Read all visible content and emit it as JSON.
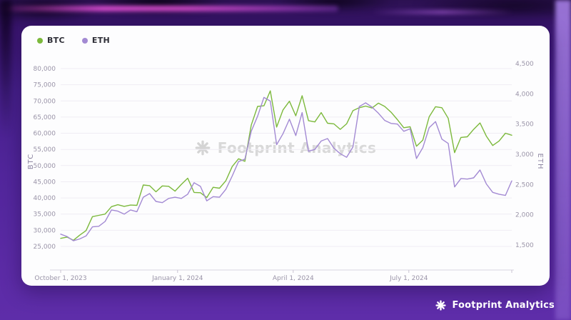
{
  "legend": [
    {
      "label": "BTC",
      "color": "#7cb93c"
    },
    {
      "label": "ETH",
      "color": "#a38ad3"
    }
  ],
  "watermark": {
    "text": "Footprint Analytics"
  },
  "footer": {
    "brand": "Footprint Analytics"
  },
  "chart_data": {
    "type": "line",
    "title": "",
    "x_axis": {
      "day_step": 5,
      "end_day": 355,
      "ticks": [
        {
          "label": "October 1, 2023",
          "day": 0
        },
        {
          "label": "January 1, 2024",
          "day": 92
        },
        {
          "label": "April 1, 2024",
          "day": 183
        },
        {
          "label": "July 1, 2024",
          "day": 274
        }
      ]
    },
    "left_axis": {
      "title": "BTC",
      "min": 25000,
      "max": 80000,
      "step": 5000
    },
    "right_axis": {
      "title": "ETH",
      "min": 1500,
      "max": 4500,
      "step": 500
    },
    "grid": true,
    "legend_position": "top-left",
    "series": [
      {
        "name": "BTC",
        "axis": "left",
        "color": "#7cb93c",
        "values": [
          27500,
          27900,
          26900,
          28500,
          29900,
          34200,
          34600,
          35000,
          37300,
          37900,
          37400,
          37800,
          37700,
          44000,
          43800,
          41900,
          43700,
          43600,
          42100,
          44200,
          46100,
          41700,
          41600,
          40100,
          43300,
          43000,
          45300,
          49700,
          52100,
          51300,
          62500,
          68300,
          68500,
          73100,
          61900,
          67200,
          69900,
          65400,
          71600,
          63900,
          63500,
          66400,
          63100,
          62900,
          61200,
          62900,
          67000,
          67900,
          68400,
          67800,
          69300,
          68300,
          66500,
          64200,
          61700,
          62000,
          56000,
          57900,
          65100,
          68200,
          67900,
          64600,
          54000,
          58700,
          58900,
          61200,
          63200,
          59100,
          56200,
          57600,
          60000,
          59400
        ]
      },
      {
        "name": "ETH",
        "axis": "right",
        "color": "#a38ad3",
        "values": [
          1680,
          1640,
          1570,
          1600,
          1650,
          1800,
          1810,
          1890,
          2080,
          2060,
          2010,
          2080,
          2050,
          2290,
          2350,
          2220,
          2200,
          2270,
          2290,
          2270,
          2340,
          2530,
          2470,
          2230,
          2300,
          2290,
          2420,
          2640,
          2880,
          2920,
          3380,
          3630,
          3940,
          3880,
          3160,
          3340,
          3580,
          3310,
          3690,
          3050,
          3080,
          3220,
          3260,
          3100,
          3010,
          2950,
          3120,
          3790,
          3850,
          3780,
          3680,
          3560,
          3510,
          3500,
          3380,
          3420,
          2930,
          3110,
          3440,
          3540,
          3250,
          3180,
          2460,
          2600,
          2590,
          2610,
          2740,
          2510,
          2370,
          2340,
          2320,
          2560
        ]
      }
    ]
  }
}
